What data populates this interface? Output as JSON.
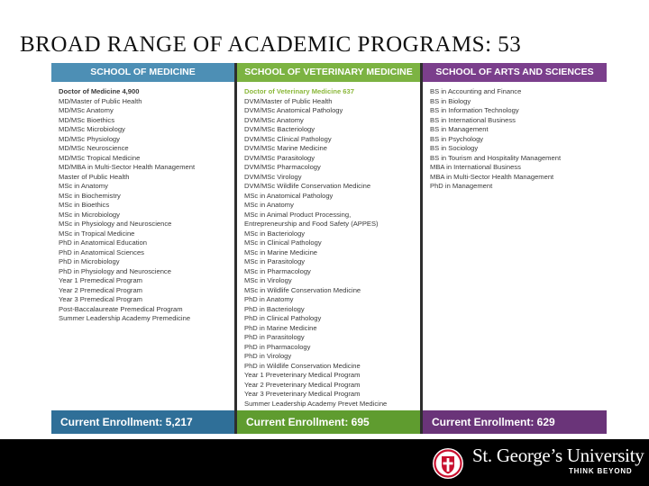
{
  "slide": {
    "title": "BROAD RANGE OF ACADEMIC PROGRAMS: 53"
  },
  "columns": [
    {
      "header": "SCHOOL OF MEDICINE",
      "header_color": "#4d8fb5",
      "footer": "Current Enrollment: 5,217",
      "footer_color": "#2f6f98",
      "lead": "Doctor of Medicine 4,900",
      "lead_color": "#3a3a3a",
      "items": [
        "MD/Master of Public Health",
        "MD/MSc Anatomy",
        "MD/MSc Bioethics",
        "MD/MSc Microbiology",
        "MD/MSc Physiology",
        "MD/MSc Neuroscience",
        "MD/MSc Tropical Medicine",
        "MD/MBA in Multi-Sector Health Management",
        "Master of Public Health",
        "MSc in Anatomy",
        "MSc in Biochemistry",
        "MSc in Bioethics",
        "MSc in Microbiology",
        "MSc in Physiology and Neuroscience",
        "MSc in Tropical Medicine",
        "PhD in Anatomical Education",
        "PhD in Anatomical Sciences",
        "PhD in Microbiology",
        "PhD in Physiology and Neuroscience",
        "Year 1 Premedical Program",
        "Year 2 Premedical Program",
        "Year 3 Premedical Program",
        "Post-Baccalaureate Premedical Program",
        "Summer Leadership Academy Premedicine"
      ]
    },
    {
      "header": "SCHOOL OF VETERINARY MEDICINE",
      "header_color": "#7cb342",
      "footer": "Current Enrollment: 695",
      "footer_color": "#5f9c2f",
      "lead": "Doctor of Veterinary Medicine 637",
      "lead_color": "#8bb83a",
      "items": [
        "DVM/Master of Public Health",
        "DVM/MSc Anatomical Pathology",
        "DVM/MSc Anatomy",
        "DVM/MSc Bacteriology",
        "DVM/MSc Clinical Pathology",
        "DVM/MSc Marine Medicine",
        "DVM/MSc Parasitology",
        "DVM/MSc Pharmacology",
        "DVM/MSc Virology",
        "DVM/MSc Wildlife Conservation Medicine",
        "MSc in Anatomical Pathology",
        "MSc in Anatomy",
        "MSc in Animal Product Processing,",
        "Entrepreneurship and Food Safety (APPES)",
        "MSc in Bacteriology",
        "MSc in Clinical Pathology",
        "MSc in Marine Medicine",
        "MSc in Parasitology",
        "MSc in Pharmacology",
        "MSc in Virology",
        "MSc in Wildlife Conservation Medicine",
        "PhD in Anatomy",
        "PhD in Bacteriology",
        "PhD in Clinical Pathology",
        "PhD in Marine Medicine",
        "PhD in Parasitology",
        "PhD in Pharmacology",
        "PhD in Virology",
        "PhD in Wildlife Conservation Medicine",
        "Year 1 Preveterinary Medical Program",
        "Year 2 Preveterinary Medical Program",
        "Year 3 Preveterinary Medical Program",
        "Summer Leadership Academy Prevet Medicine"
      ]
    },
    {
      "header": "SCHOOL OF ARTS AND SCIENCES",
      "header_color": "#7b3f8c",
      "footer": "Current Enrollment: 629",
      "footer_color": "#6a3479",
      "lead": "",
      "lead_color": "#3a3a3a",
      "items": [
        "BS in Accounting and Finance",
        "BS in Biology",
        "BS in Information Technology",
        "BS in International Business",
        "BS in Management",
        "BS in Psychology",
        "BS in Sociology",
        "BS in Tourism and Hospitality Management",
        "MBA in International Business",
        "MBA in Multi-Sector Health Management",
        "PhD in Management"
      ]
    }
  ],
  "branding": {
    "name": "St. George’s University",
    "tagline": "THINK BEYOND",
    "crest_color": "#c8102e",
    "logo_icon": "university-crest-icon"
  }
}
